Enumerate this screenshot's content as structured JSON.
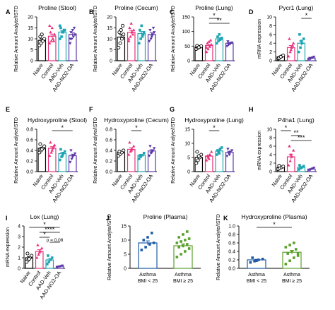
{
  "chart_data": [
    {
      "letter": "A",
      "type": "bar",
      "title": "Proline (Stool)",
      "ylabel": "Relative Amount Analyte/ISTD",
      "ylim": [
        0,
        20
      ],
      "yticks": [
        0,
        5,
        10,
        15,
        20
      ],
      "categories": [
        "Naive",
        "Control",
        "AAD-Veh",
        "AAD-NO2-OA"
      ],
      "values": [
        9.3,
        11.2,
        13.1,
        12.0
      ],
      "points": [
        [
          7,
          8,
          9,
          10,
          11,
          12
        ],
        [
          8,
          9,
          10,
          12,
          13,
          15,
          9,
          16
        ],
        [
          10,
          11,
          13,
          14,
          15,
          13,
          14,
          16
        ],
        [
          8,
          10,
          11,
          12,
          13,
          14,
          15,
          10
        ]
      ]
    },
    {
      "letter": "B",
      "type": "bar",
      "title": "Proline (Cecum)",
      "ylabel": "Relative Amount Analyte/ISTD",
      "ylim": [
        0,
        20
      ],
      "yticks": [
        0,
        5,
        10,
        15,
        20
      ],
      "categories": [
        "Naive",
        "Control",
        "AAD-Veh",
        "AAD-NO2-OA"
      ],
      "values": [
        10.8,
        13.0,
        12.4,
        12.0
      ],
      "points": [
        [
          6,
          8,
          10,
          12,
          13,
          14,
          16
        ],
        [
          9,
          11,
          13,
          14,
          15,
          17,
          12,
          10
        ],
        [
          8,
          10,
          11,
          13,
          14,
          16,
          12
        ],
        [
          9,
          10,
          12,
          13,
          14,
          11,
          15
        ]
      ]
    },
    {
      "letter": "C",
      "type": "bar",
      "title": "Proline (Lung)",
      "ylabel": "Relative Amount Analyte/ISTD",
      "ylim": [
        0,
        150
      ],
      "yticks": [
        0,
        50,
        100,
        150
      ],
      "categories": [
        "Naive",
        "Control",
        "AAD-Veh",
        "AAD-NO2-OA"
      ],
      "values": [
        47,
        52,
        75,
        60
      ],
      "points": [
        [
          40,
          44,
          47,
          50,
          52,
          46
        ],
        [
          30,
          40,
          48,
          55,
          60,
          65,
          70,
          45
        ],
        [
          60,
          68,
          72,
          78,
          82,
          90,
          75
        ],
        [
          50,
          55,
          58,
          62,
          66,
          60
        ]
      ],
      "sig": [
        {
          "from": 1,
          "to": 2,
          "label": "*"
        },
        {
          "from": 1,
          "to": 3,
          "label": "**"
        }
      ]
    },
    {
      "letter": "D",
      "type": "bar",
      "title": "Pycr1 (Lung)",
      "ylabel": "mRNA expression",
      "ylim": [
        0,
        10
      ],
      "yticks": [
        0,
        2,
        4,
        6,
        8,
        10
      ],
      "categories": [
        "Naive",
        "Control",
        "AAD-Veh",
        "AAD-NO2-OA"
      ],
      "values": [
        0.9,
        3.0,
        4.0,
        0.6
      ],
      "points": [
        [
          0.5,
          0.8,
          1.0,
          1.2,
          0.6,
          0.9
        ],
        [
          1,
          2,
          3,
          4,
          5,
          2.5,
          3.5
        ],
        [
          2,
          3,
          4,
          5,
          6,
          4.5
        ],
        [
          0.3,
          0.5,
          0.7,
          0.9,
          0.6
        ]
      ],
      "sig": [
        {
          "from": 2,
          "to": 3,
          "label": "*"
        }
      ]
    },
    {
      "letter": "E",
      "type": "bar",
      "title": "Hydroxyproline (Stool)",
      "ylabel": "Relative Amount Analyte/ISTD",
      "ylim": [
        0,
        0.8
      ],
      "yticks": [
        0.0,
        0.2,
        0.4,
        0.6,
        0.8
      ],
      "categories": [
        "Naive",
        "Control",
        "AAD-Veh",
        "AAD-NO2-OA"
      ],
      "values": [
        0.44,
        0.44,
        0.34,
        0.3
      ],
      "points": [
        [
          0.36,
          0.4,
          0.44,
          0.48,
          0.52,
          0.42
        ],
        [
          0.3,
          0.36,
          0.44,
          0.5,
          0.55,
          0.4,
          0.48
        ],
        [
          0.22,
          0.28,
          0.34,
          0.38,
          0.42,
          0.3
        ],
        [
          0.18,
          0.24,
          0.3,
          0.34,
          0.4,
          0.28
        ]
      ],
      "sig": [
        {
          "from": 1,
          "to": 3,
          "label": "*"
        }
      ]
    },
    {
      "letter": "F",
      "type": "bar",
      "title": "Hydroxyproline (Cecum)",
      "ylabel": "Relative Amount Analyte/ISTD",
      "ylim": [
        0,
        0.8
      ],
      "yticks": [
        0.0,
        0.2,
        0.4,
        0.6,
        0.8
      ],
      "categories": [
        "Naive",
        "Control",
        "AAD-Veh",
        "AAD-NO2-OA"
      ],
      "values": [
        0.36,
        0.42,
        0.31,
        0.39
      ],
      "points": [
        [
          0.3,
          0.33,
          0.36,
          0.4,
          0.38
        ],
        [
          0.32,
          0.38,
          0.42,
          0.48,
          0.55,
          0.4
        ],
        [
          0.24,
          0.28,
          0.31,
          0.35,
          0.3
        ],
        [
          0.3,
          0.35,
          0.39,
          0.44,
          0.48,
          0.36
        ]
      ],
      "sig": [
        {
          "from": 1,
          "to": 2,
          "label": "*"
        }
      ]
    },
    {
      "letter": "G",
      "type": "bar",
      "title": "Hydroxyproline (Lung)",
      "ylabel": "Relative Amount Analyte/ISTD",
      "ylim": [
        0,
        15
      ],
      "yticks": [
        0,
        5,
        10,
        15
      ],
      "categories": [
        "Naive",
        "Control",
        "AAD-Veh",
        "AAD-NO2-OA"
      ],
      "values": [
        5.0,
        5.5,
        7.3,
        6.8
      ],
      "points": [
        [
          3,
          4,
          5,
          6,
          7,
          5.5
        ],
        [
          4,
          5,
          6,
          7,
          5.5,
          4.5
        ],
        [
          6,
          7,
          8,
          8.5,
          7.5,
          6.5
        ],
        [
          5.5,
          6.5,
          7,
          7.5,
          8,
          6
        ]
      ],
      "sig": [
        {
          "from": 1,
          "to": 2,
          "label": "*"
        }
      ]
    },
    {
      "letter": "H",
      "type": "bar",
      "title": "P4ha1 (Lung)",
      "ylabel": "mRNA expression",
      "ylim": [
        0,
        10
      ],
      "yticks": [
        0,
        2,
        4,
        6,
        8,
        10
      ],
      "categories": [
        "Naive",
        "Control",
        "AAD-Veh",
        "AAD-NO2-OA"
      ],
      "values": [
        1.0,
        3.5,
        1.0,
        0.6
      ],
      "points": [
        [
          0.6,
          0.8,
          1.0,
          1.2,
          1.4
        ],
        [
          1.5,
          2.5,
          3.5,
          5,
          6,
          4
        ],
        [
          0.5,
          0.8,
          1.0,
          1.3,
          1.5
        ],
        [
          0.3,
          0.5,
          0.7,
          0.9
        ]
      ],
      "sig": [
        {
          "from": 0,
          "to": 1,
          "label": "*"
        },
        {
          "from": 1,
          "to": 2,
          "label": "**"
        },
        {
          "from": 1,
          "to": 3,
          "label": "***"
        }
      ]
    },
    {
      "letter": "I",
      "type": "bar",
      "title": "Lox (Lung)",
      "ylabel": "mRNA expression",
      "ylim": [
        0,
        4
      ],
      "yticks": [
        0,
        1,
        2,
        3,
        4
      ],
      "categories": [
        "Naive",
        "Control",
        "AAD-Veh",
        "AAD-NO2-OA"
      ],
      "values": [
        1.0,
        1.6,
        0.8,
        0.2
      ],
      "points": [
        [
          0.6,
          0.8,
          1.0,
          1.2,
          1.4,
          0.9
        ],
        [
          1.0,
          1.3,
          1.6,
          1.9,
          2.2,
          1.5
        ],
        [
          0.4,
          0.6,
          0.8,
          1.0,
          1.2
        ],
        [
          0.1,
          0.15,
          0.2,
          0.25
        ]
      ],
      "sig": [
        {
          "from": 0,
          "to": 3,
          "label": "*"
        },
        {
          "from": 1,
          "to": 3,
          "label": "****"
        },
        {
          "from": 1,
          "to": 2,
          "label": "*"
        },
        {
          "from": 2,
          "to": 3,
          "label": "p = 0.08"
        }
      ]
    },
    {
      "letter": "J",
      "type": "bar",
      "title": "Proline (Plasma)",
      "ylabel": "Relative Amount Analyte/ISTD",
      "ylim": [
        0,
        15
      ],
      "yticks": [
        0,
        5,
        10,
        15
      ],
      "categories": [
        "Asthma BMI < 25",
        "Asthma BMI ≥ 25"
      ],
      "values": [
        9.0,
        8.0
      ],
      "points": [
        [
          6.5,
          7.5,
          8.5,
          9,
          10,
          11,
          12.5
        ],
        [
          4,
          5,
          6,
          7,
          7.5,
          8,
          8.5,
          9,
          9.5,
          10,
          10.5,
          11,
          12,
          13
        ]
      ]
    },
    {
      "letter": "K",
      "type": "bar",
      "title": "Hydroxyproline (Plasma)",
      "ylabel": "Relative Amount Analyte/ISTD",
      "ylim": [
        0,
        1.0
      ],
      "yticks": [
        0.0,
        0.2,
        0.4,
        0.6,
        0.8,
        1.0
      ],
      "categories": [
        "Asthma BMI < 25",
        "Asthma BMI ≥ 25"
      ],
      "values": [
        0.2,
        0.38
      ],
      "points": [
        [
          0.14,
          0.17,
          0.2,
          0.22,
          0.25,
          0.18
        ],
        [
          0.1,
          0.18,
          0.25,
          0.3,
          0.35,
          0.4,
          0.45,
          0.5,
          0.55,
          0.6,
          0.35
        ]
      ],
      "sig": [
        {
          "from": 0,
          "to": 1,
          "label": "*"
        }
      ]
    }
  ],
  "colors": {
    "group": [
      "#000000",
      "#e8317c",
      "#1ea5b4",
      "#5a37a8"
    ],
    "plasma": [
      "#1f5aa6",
      "#5aa02c"
    ]
  }
}
